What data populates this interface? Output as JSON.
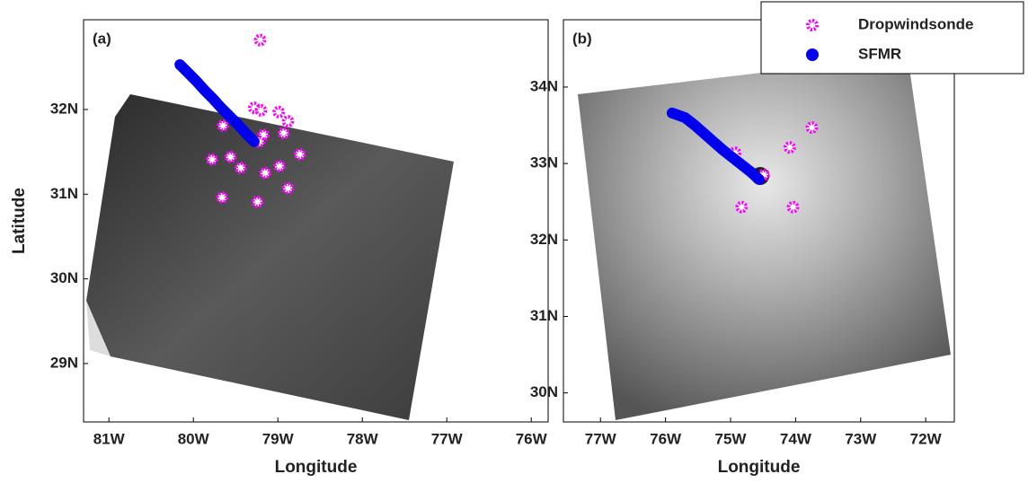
{
  "chart_data": [
    {
      "type": "scatter",
      "annotation": "(a)",
      "xlabel": "Longitude",
      "ylabel": "Latitude",
      "xlim": [
        -81.3,
        -75.8
      ],
      "ylim": [
        28.31,
        33.06
      ],
      "xticks": [
        {
          "value": -81,
          "label": "81W"
        },
        {
          "value": -80,
          "label": "80W"
        },
        {
          "value": -79,
          "label": "79W"
        },
        {
          "value": -78,
          "label": "78W"
        },
        {
          "value": -77,
          "label": "77W"
        },
        {
          "value": -76,
          "label": "76W"
        }
      ],
      "yticks": [
        {
          "value": 29,
          "label": "29N"
        },
        {
          "value": 30,
          "label": "30N"
        },
        {
          "value": 31,
          "label": "31N"
        },
        {
          "value": 32,
          "label": "32N"
        }
      ],
      "series": [
        {
          "color": "#ff00ff",
          "style": "marker",
          "x": [
            -79.21,
            -79.28,
            -79.2,
            -78.99,
            -78.88,
            -79.65,
            -78.93,
            -79.17,
            -79.22,
            -78.74,
            -79.78,
            -79.56,
            -78.98,
            -79.44,
            -79.15,
            -78.88,
            -79.66,
            -79.24
          ],
          "values": [
            32.82,
            32.02,
            31.99,
            31.97,
            31.86,
            31.81,
            31.72,
            31.7,
            31.62,
            31.47,
            31.41,
            31.44,
            31.33,
            31.31,
            31.25,
            31.07,
            30.96,
            30.91
          ]
        },
        {
          "color": "#0000ee",
          "style": "line",
          "x": [
            -80.16,
            -80.06,
            -79.96,
            -79.87,
            -79.77,
            -79.67,
            -79.57,
            -79.47,
            -79.38,
            -79.28
          ],
          "values": [
            32.53,
            32.43,
            32.33,
            32.23,
            32.13,
            32.02,
            31.92,
            31.82,
            31.72,
            31.62
          ]
        }
      ]
    },
    {
      "type": "scatter",
      "annotation": "(b)",
      "xlabel": "Longitude",
      "legend": "upper right",
      "xlim": [
        -77.57,
        -71.56
      ],
      "ylim": [
        29.62,
        34.88
      ],
      "xticks": [
        {
          "value": -77,
          "label": "77W"
        },
        {
          "value": -76,
          "label": "76W"
        },
        {
          "value": -75,
          "label": "75W"
        },
        {
          "value": -74,
          "label": "74W"
        },
        {
          "value": -73,
          "label": "73W"
        },
        {
          "value": -72,
          "label": "72W"
        }
      ],
      "yticks": [
        {
          "value": 30,
          "label": "30N"
        },
        {
          "value": 31,
          "label": "31N"
        },
        {
          "value": 32,
          "label": "32N"
        },
        {
          "value": 33,
          "label": "33N"
        },
        {
          "value": 34,
          "label": "34N"
        }
      ],
      "series": [
        {
          "name": "Dropwindsonde",
          "color": "#ff00ff",
          "style": "marker",
          "x": [
            -73.75,
            -74.09,
            -74.93,
            -74.49,
            -74.83,
            -74.04
          ],
          "values": [
            33.47,
            33.21,
            33.14,
            32.85,
            32.43,
            32.43
          ]
        },
        {
          "name": "SFMR",
          "color": "#0000ee",
          "style": "line",
          "x": [
            -75.9,
            -75.7,
            -75.55,
            -75.31,
            -75.11,
            -74.9,
            -74.69,
            -74.56
          ],
          "values": [
            33.66,
            33.6,
            33.5,
            33.32,
            33.17,
            33.03,
            32.89,
            32.79
          ]
        }
      ]
    }
  ]
}
